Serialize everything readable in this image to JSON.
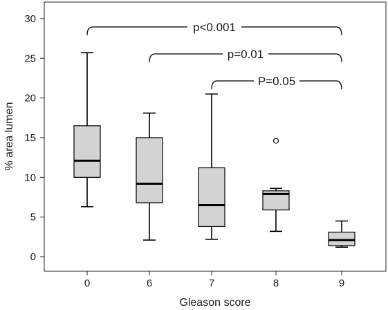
{
  "chart_data": {
    "type": "box",
    "xlabel": "Gleason score",
    "ylabel": "% area lumen",
    "ylim": [
      0,
      30
    ],
    "yticks": [
      "0",
      "5",
      "10",
      "15",
      "20",
      "25",
      "30"
    ],
    "grid": false,
    "box_fill": "#d3d3d3",
    "line_color": "#000000",
    "categories": [
      "0",
      "6",
      "7",
      "8",
      "9"
    ],
    "boxes": [
      {
        "category": "0",
        "whisker_low": 6.3,
        "q1": 10.0,
        "median": 12.1,
        "q3": 16.5,
        "whisker_high": 25.7,
        "outliers": []
      },
      {
        "category": "6",
        "whisker_low": 2.1,
        "q1": 6.8,
        "median": 9.2,
        "q3": 15.0,
        "whisker_high": 18.1,
        "outliers": []
      },
      {
        "category": "7",
        "whisker_low": 2.2,
        "q1": 3.8,
        "median": 6.5,
        "q3": 11.2,
        "whisker_high": 20.5,
        "outliers": []
      },
      {
        "category": "8",
        "whisker_low": 3.2,
        "q1": 5.9,
        "median": 7.9,
        "q3": 8.3,
        "whisker_high": 8.6,
        "outliers": [
          14.6
        ]
      },
      {
        "category": "9",
        "whisker_low": 1.2,
        "q1": 1.4,
        "median": 2.1,
        "q3": 3.1,
        "whisker_high": 4.5,
        "outliers": []
      }
    ],
    "significance": [
      {
        "from": "0",
        "to": "9",
        "label": "p<0.001",
        "level": 30.0
      },
      {
        "from": "6",
        "to": "9",
        "label": "p=0.01",
        "level": 26.6
      },
      {
        "from": "7",
        "to": "9",
        "label": "P=0.05",
        "level": 23.2
      }
    ]
  }
}
